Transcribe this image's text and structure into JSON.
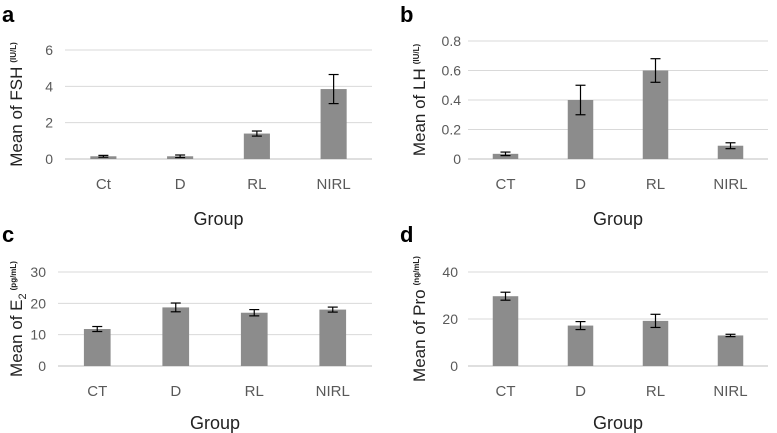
{
  "chart_data": [
    {
      "panel": "a",
      "type": "bar",
      "title": "",
      "categories": [
        "Ct",
        "D",
        "RL",
        "NIRL"
      ],
      "values": [
        0.15,
        0.15,
        1.4,
        3.85
      ],
      "errors": [
        0.05,
        0.07,
        0.14,
        0.8
      ],
      "xlabel": "Group",
      "ylabel": {
        "main": "Mean of FSH",
        "sub": "(IU/L)"
      },
      "ylim": [
        0,
        6
      ],
      "yticks": [
        0,
        2,
        4,
        6
      ],
      "color": "#8c8c8c"
    },
    {
      "panel": "b",
      "type": "bar",
      "title": "",
      "categories": [
        "CT",
        "D",
        "RL",
        "NIRL"
      ],
      "values": [
        0.035,
        0.4,
        0.6,
        0.09
      ],
      "errors": [
        0.012,
        0.1,
        0.08,
        0.02
      ],
      "xlabel": "Group",
      "ylabel": {
        "main": "Mean of LH",
        "sub": "(IU/L)"
      },
      "ylim": [
        0,
        0.8
      ],
      "yticks": [
        0,
        0.2,
        0.4,
        0.6,
        0.8
      ],
      "color": "#8c8c8c"
    },
    {
      "panel": "c",
      "type": "bar",
      "title": "",
      "categories": [
        "CT",
        "D",
        "RL",
        "NIRL"
      ],
      "values": [
        11.8,
        18.7,
        17.0,
        18.0
      ],
      "errors": [
        0.8,
        1.4,
        1.0,
        0.8
      ],
      "xlabel": "Group",
      "ylabel": {
        "main": "Mean of E",
        "subscript": "2",
        "sub": "(pg/mL)"
      },
      "ylim": [
        0,
        30
      ],
      "yticks": [
        0,
        10,
        20,
        30
      ],
      "color": "#8c8c8c"
    },
    {
      "panel": "d",
      "type": "bar",
      "title": "",
      "categories": [
        "CT",
        "D",
        "RL",
        "NIRL"
      ],
      "values": [
        29.7,
        17.2,
        19.2,
        13.0
      ],
      "errors": [
        1.7,
        1.7,
        2.8,
        0.5
      ],
      "xlabel": "Group",
      "ylabel": {
        "main": "Mean of Pro",
        "sub": "(ng/mL)"
      },
      "ylim": [
        0,
        40
      ],
      "yticks": [
        0,
        20,
        40
      ],
      "color": "#8c8c8c"
    }
  ]
}
